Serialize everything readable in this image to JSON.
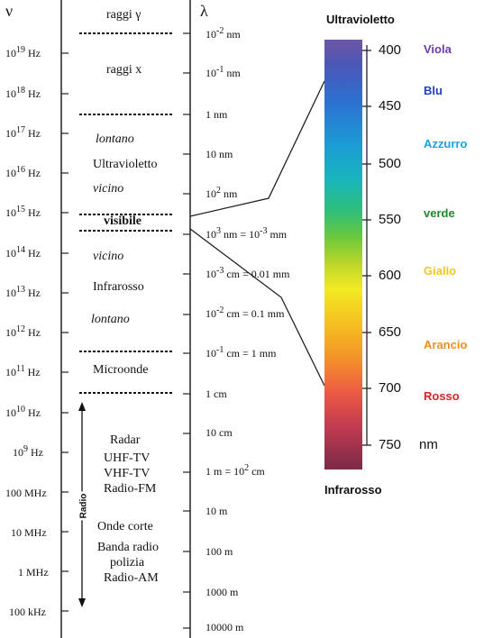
{
  "header": {
    "nu": "ν",
    "lambda": "λ"
  },
  "frequencies": [
    "10^19 Hz",
    "10^18 Hz",
    "10^17 Hz",
    "10^16 Hz",
    "10^15 Hz",
    "10^14 Hz",
    "10^13 Hz",
    "10^12 Hz",
    "10^11 Hz",
    "10^10 Hz",
    "10^9 Hz",
    "100 MHz",
    "10 MHz",
    "1 MHz",
    "100 kHz"
  ],
  "bands": {
    "gamma": "raggi γ",
    "x": "raggi x",
    "uv_far": "lontano",
    "uv": "Ultravioletto",
    "uv_near": "vicino",
    "visible": "visibile",
    "ir_near": "vicino",
    "ir": "Infrarosso",
    "ir_far": "lontano",
    "micro": "Microonde",
    "radar": "Radar",
    "uhf": "UHF-TV",
    "vhf": "VHF-TV",
    "fm": "Radio-FM",
    "short": "Onde corte",
    "police1": "Banda radio",
    "police2": "polizia",
    "am": "Radio-AM",
    "radio_axis": "Radio"
  },
  "wavelengths": {
    "w1": "10^-2 nm",
    "w2": "10^-1 nm",
    "w3": "1   nm",
    "w4": "10   nm",
    "w5": "10^2 nm",
    "w6": "10^3 nm = 10^-3 mm",
    "w7": "10^-3 cm = 0.01 mm",
    "w8": "10^-2 cm = 0.1 mm",
    "w9": "10^-1 cm = 1 mm",
    "w10": "1  cm",
    "w11": "10 cm",
    "w12": "1 m = 10^2 cm",
    "w13": "10 m",
    "w14": "100 m",
    "w15": "1000 m",
    "w16": "10000 m"
  },
  "visible_scale": {
    "title_top": "Ultravioletto",
    "title_bottom": "Infrarosso",
    "ticks": [
      "400",
      "450",
      "500",
      "550",
      "600",
      "650",
      "700",
      "750"
    ],
    "unit": "nm",
    "colors": [
      {
        "name": "Viola",
        "hex": "#6a3aa8"
      },
      {
        "name": "Blu",
        "hex": "#1f3fc4"
      },
      {
        "name": "Azzurro",
        "hex": "#1aa3dc"
      },
      {
        "name": "verde",
        "hex": "#1e8a2e"
      },
      {
        "name": "Giallo",
        "hex": "#f2c81c"
      },
      {
        "name": "Arancio",
        "hex": "#ef8f1e"
      },
      {
        "name": "Rosso",
        "hex": "#d62424"
      }
    ]
  }
}
